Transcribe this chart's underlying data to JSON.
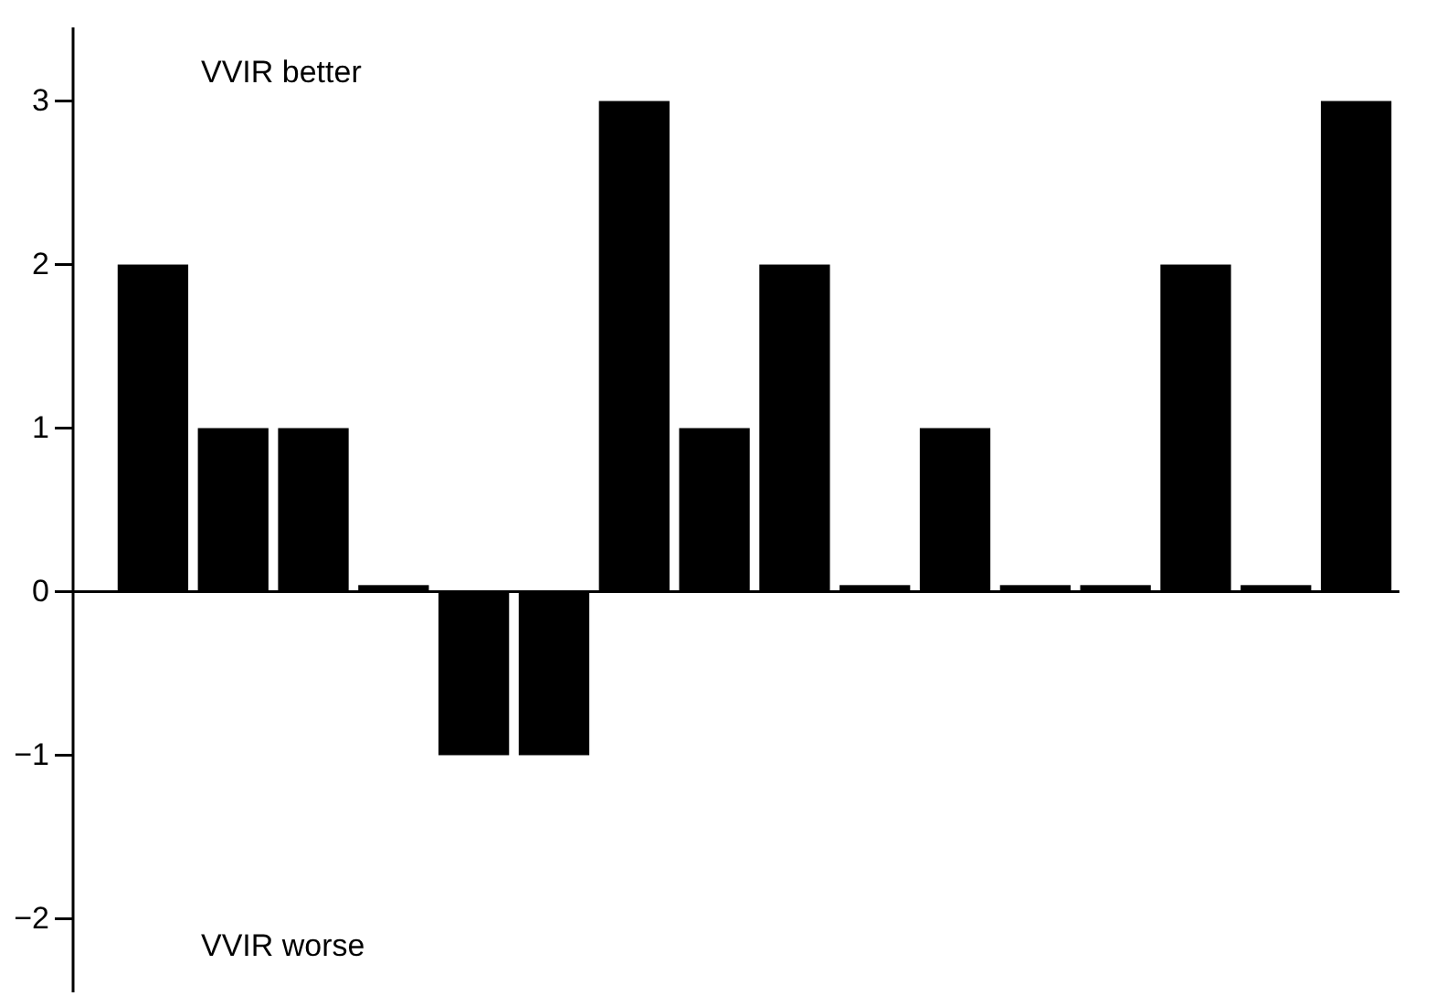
{
  "chart_data": {
    "type": "bar",
    "categories": [
      null,
      null,
      null,
      null,
      null,
      null,
      null,
      null,
      null,
      null,
      null,
      null,
      null,
      null,
      null,
      null
    ],
    "values": [
      2,
      1,
      1,
      0.04,
      -1,
      -1,
      3,
      1,
      2,
      0.04,
      1,
      0.04,
      0.04,
      2,
      0.04,
      3
    ],
    "color": "#000000",
    "ylim": [
      -2.45,
      3.45
    ],
    "yticks": [
      -2,
      -1,
      0,
      1,
      2,
      3
    ],
    "grid": false,
    "ref_lines": [
      {
        "axis": "y",
        "value": 0,
        "color": "#000000"
      }
    ],
    "annotations": [
      "VVIR better",
      "VVIR worse"
    ]
  }
}
